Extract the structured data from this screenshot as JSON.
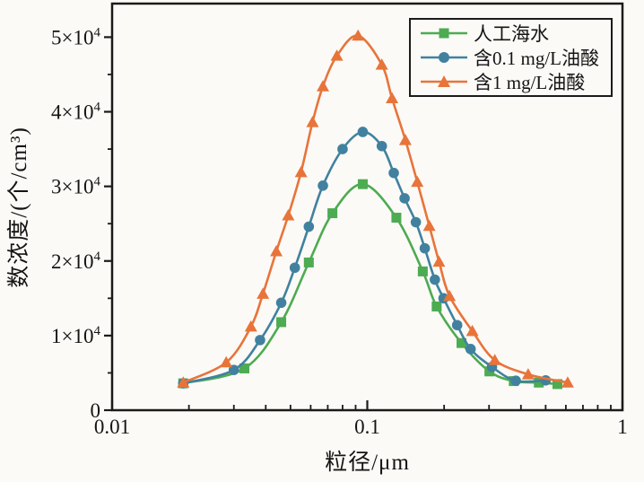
{
  "figure": {
    "x_axis_title": "粒径/μm",
    "y_axis_title": "数浓度/(个/cm³)"
  },
  "chart_data": {
    "type": "line",
    "x_scale": "log",
    "xlabel": "粒径/μm",
    "ylabel": "数浓度/(个/cm³)",
    "xlim": [
      0.01,
      1
    ],
    "ylim": [
      0,
      54500
    ],
    "grid": false,
    "legend_position": "top-right-inside",
    "frame_color": "#1a1a1a",
    "background_color": "#fbfaf7",
    "x_ticks": [
      {
        "v": 0.01,
        "t": "0.01"
      },
      {
        "v": 0.1,
        "t": "0.1"
      },
      {
        "v": 1,
        "t": "1"
      }
    ],
    "x_minor_ticks": [
      0.02,
      0.03,
      0.04,
      0.05,
      0.06,
      0.07,
      0.08,
      0.09,
      0.2,
      0.3,
      0.4,
      0.5,
      0.6,
      0.7,
      0.8,
      0.9
    ],
    "y_ticks": [
      {
        "v": 0,
        "t": "0"
      },
      {
        "v": 10000,
        "t": "1×10",
        "s": "4"
      },
      {
        "v": 20000,
        "t": "2×10",
        "s": "4"
      },
      {
        "v": 30000,
        "t": "3×10",
        "s": "4"
      },
      {
        "v": 40000,
        "t": "4×10",
        "s": "4"
      },
      {
        "v": 50000,
        "t": "5×10",
        "s": "4"
      }
    ],
    "y_minor_ticks": [
      5000,
      15000,
      25000,
      35000,
      45000
    ],
    "series": [
      {
        "name": "人工海水",
        "color": "#4dab51",
        "marker": "square",
        "points": [
          [
            0.019,
            3600
          ],
          [
            0.033,
            5600
          ],
          [
            0.046,
            11800
          ],
          [
            0.059,
            19800
          ],
          [
            0.073,
            26400
          ],
          [
            0.096,
            30300
          ],
          [
            0.13,
            25800
          ],
          [
            0.165,
            18600
          ],
          [
            0.187,
            13900
          ],
          [
            0.234,
            9000
          ],
          [
            0.301,
            5200
          ],
          [
            0.375,
            3900
          ],
          [
            0.47,
            3700
          ],
          [
            0.556,
            3500
          ]
        ]
      },
      {
        "name": "含0.1 mg/L油酸",
        "color": "#41819f",
        "marker": "circle",
        "points": [
          [
            0.019,
            3600
          ],
          [
            0.03,
            5400
          ],
          [
            0.038,
            9400
          ],
          [
            0.046,
            14400
          ],
          [
            0.052,
            19100
          ],
          [
            0.059,
            24600
          ],
          [
            0.067,
            30100
          ],
          [
            0.08,
            35000
          ],
          [
            0.096,
            37300
          ],
          [
            0.114,
            35400
          ],
          [
            0.127,
            31800
          ],
          [
            0.14,
            28400
          ],
          [
            0.155,
            25200
          ],
          [
            0.168,
            21700
          ],
          [
            0.184,
            17500
          ],
          [
            0.199,
            15000
          ],
          [
            0.225,
            11400
          ],
          [
            0.254,
            8200
          ],
          [
            0.308,
            5800
          ],
          [
            0.382,
            3950
          ],
          [
            0.5,
            4000
          ]
        ]
      },
      {
        "name": "含1 mg/L油酸",
        "color": "#e8743a",
        "marker": "triangle",
        "points": [
          [
            0.019,
            3700
          ],
          [
            0.028,
            6400
          ],
          [
            0.035,
            11200
          ],
          [
            0.039,
            15600
          ],
          [
            0.044,
            21300
          ],
          [
            0.049,
            26100
          ],
          [
            0.055,
            31900
          ],
          [
            0.061,
            38600
          ],
          [
            0.067,
            43400
          ],
          [
            0.076,
            47500
          ],
          [
            0.092,
            50200
          ],
          [
            0.114,
            46300
          ],
          [
            0.125,
            41800
          ],
          [
            0.141,
            36200
          ],
          [
            0.157,
            30600
          ],
          [
            0.175,
            24700
          ],
          [
            0.191,
            19900
          ],
          [
            0.21,
            15300
          ],
          [
            0.258,
            10600
          ],
          [
            0.316,
            6700
          ],
          [
            0.427,
            4800
          ],
          [
            0.61,
            3700
          ]
        ]
      }
    ]
  }
}
